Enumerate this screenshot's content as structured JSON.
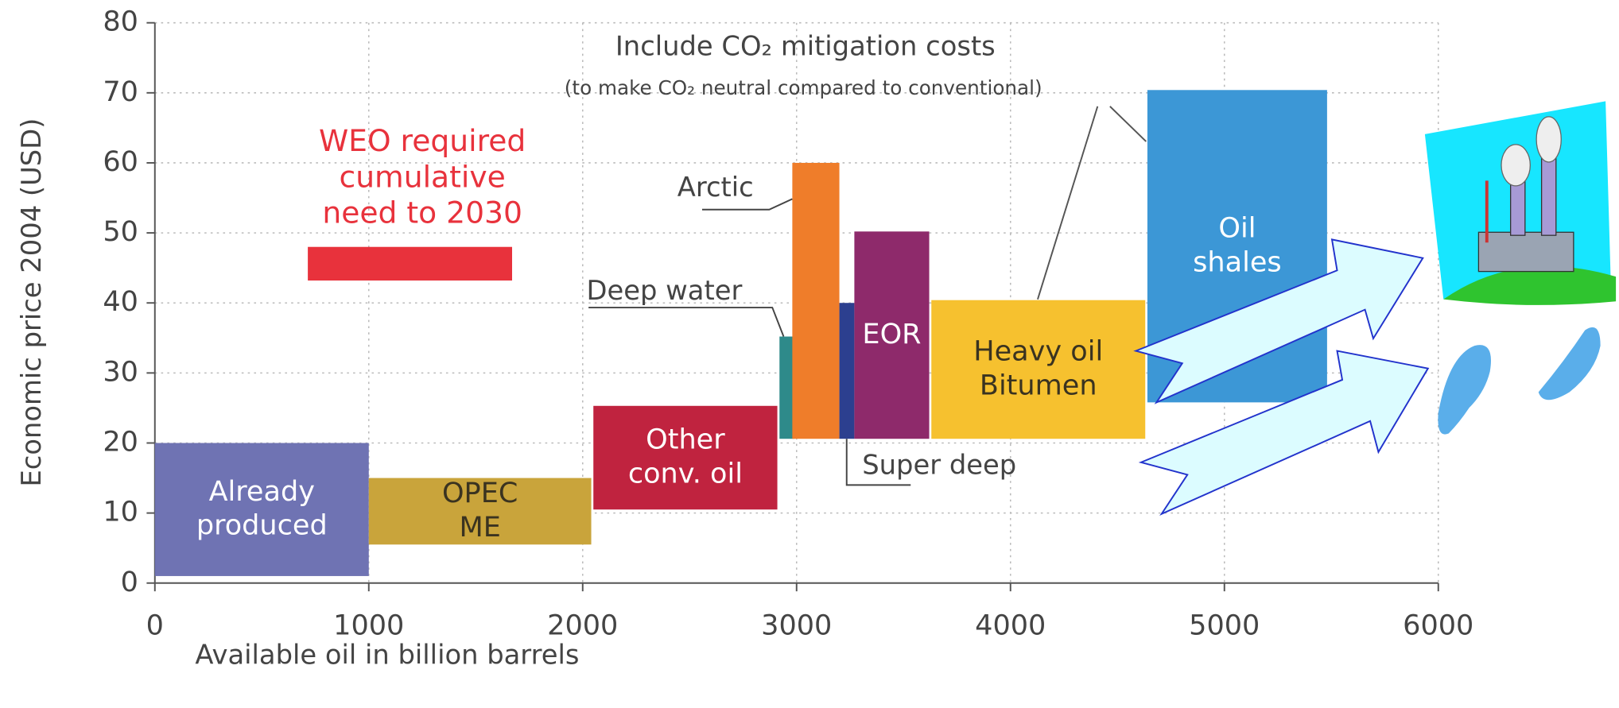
{
  "chart_data": {
    "type": "range-bar",
    "annotations": {
      "title": "Include CO₂ mitigation costs",
      "subtitle": "(to make CO₂ neutral compared to conventional)"
    },
    "xlabel": "Available oil in billion barrels",
    "ylabel": "Economic price 2004 (USD)",
    "xlim": [
      0,
      6000
    ],
    "xticks": [
      0,
      1000,
      2000,
      3000,
      4000,
      5000,
      6000
    ],
    "ylim": [
      0,
      80
    ],
    "yticks": [
      0,
      10,
      20,
      30,
      40,
      50,
      60,
      70,
      80
    ],
    "grid": true,
    "segments": [
      {
        "label": [
          "Already",
          "produced"
        ],
        "color": "#6f73b3",
        "x0": 0,
        "x1": 1000,
        "y0": 1,
        "y1": 20
      },
      {
        "label": [
          "OPEC",
          "ME"
        ],
        "color": "#c9a43b",
        "x0": 1000,
        "x1": 2040,
        "y0": 5.5,
        "y1": 15
      },
      {
        "label": [
          "Other",
          "conv. oil"
        ],
        "color": "#c0233f",
        "x0": 2050,
        "x1": 2910,
        "y0": 10.5,
        "y1": 25.3
      },
      {
        "label": [
          "Deep water"
        ],
        "color": "#2e8a8a",
        "x0": 2920,
        "x1": 2990,
        "y0": 20.6,
        "y1": 35.2,
        "callout": true
      },
      {
        "label": [
          "Arctic"
        ],
        "color": "#ef7d2a",
        "x0": 2980,
        "x1": 3200,
        "y0": 20.6,
        "y1": 60,
        "callout": true
      },
      {
        "label": [
          "Super deep"
        ],
        "color": "#2c3f8f",
        "x0": 3200,
        "x1": 3270,
        "y0": 20.6,
        "y1": 40,
        "callout": true
      },
      {
        "label": [
          "EOR"
        ],
        "color": "#8e2a6b",
        "x0": 3270,
        "x1": 3620,
        "y0": 20.6,
        "y1": 50.2
      },
      {
        "label": [
          "Heavy oil",
          "Bitumen"
        ],
        "color": "#f6c12f",
        "x0": 3630,
        "x1": 4630,
        "y0": 20.6,
        "y1": 40.4
      },
      {
        "label": [
          "Oil",
          "shales"
        ],
        "color": "#3c97d6",
        "x0": 4640,
        "x1": 5480,
        "y0": 25.8,
        "y1": 70.4
      }
    ],
    "target": {
      "label": [
        "WEO required",
        "cumulative",
        "need to 2030"
      ],
      "color": "#e8323c",
      "x0": 715,
      "x1": 1670,
      "y0": 43.2,
      "y1": 48
    }
  }
}
